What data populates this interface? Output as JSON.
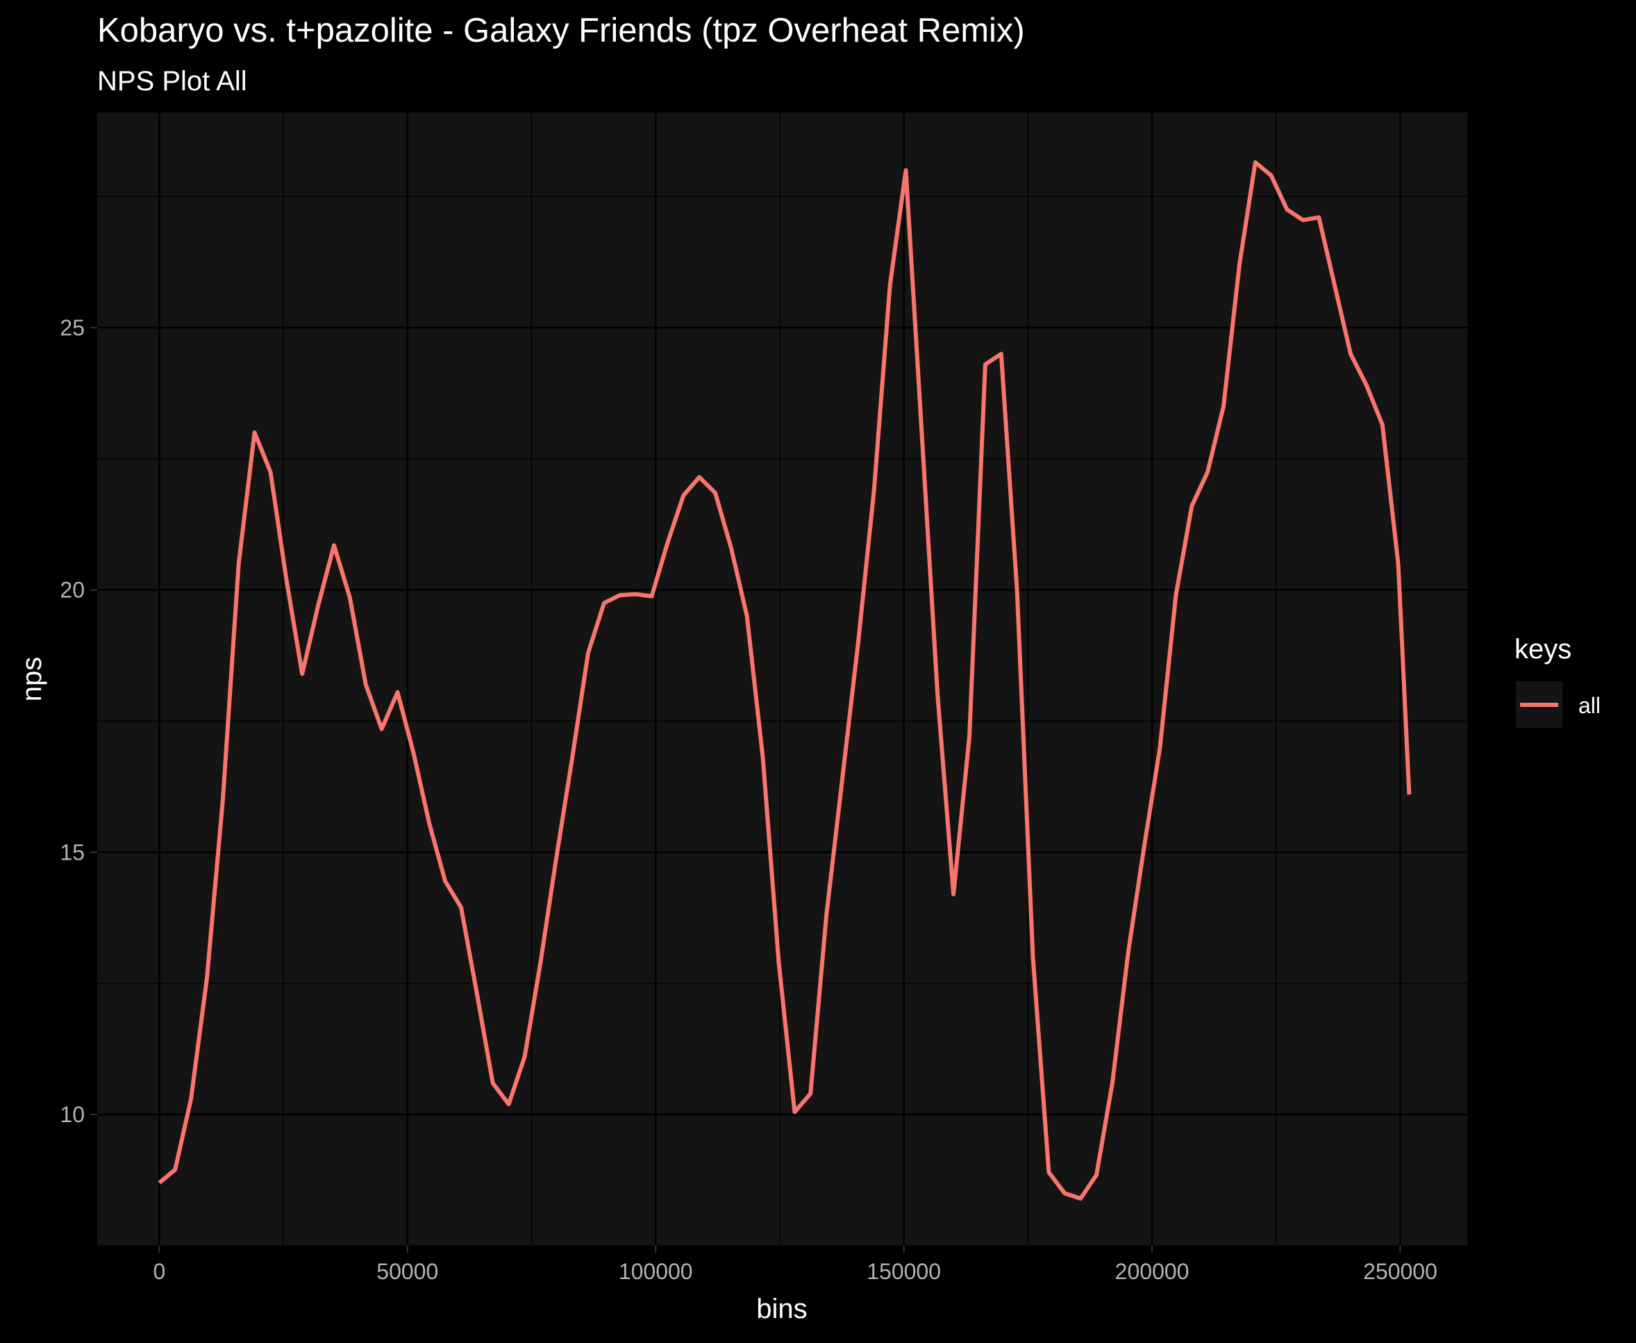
{
  "chart_data": {
    "type": "line",
    "title": "Kobaryo vs. t+pazolite - Galaxy Friends (tpz Overheat Remix)",
    "subtitle": "NPS Plot All",
    "xlabel": "bins",
    "ylabel": "nps",
    "xlim": [
      -12500,
      263500
    ],
    "ylim": [
      7.5,
      29.1
    ],
    "x_ticks": [
      0,
      50000,
      100000,
      150000,
      200000,
      250000
    ],
    "x_tick_labels": [
      "0",
      "50000",
      "100000",
      "150000",
      "200000",
      "250000"
    ],
    "y_ticks": [
      10,
      15,
      20,
      25
    ],
    "y_tick_labels": [
      "10",
      "15",
      "20",
      "25"
    ],
    "x_minor": [
      25000,
      75000,
      125000,
      175000,
      225000
    ],
    "y_minor": [
      7.5,
      12.5,
      17.5,
      22.5,
      27.5
    ],
    "grid": true,
    "legend": {
      "title": "keys",
      "position": "right",
      "entries": [
        {
          "label": "all",
          "color": "#F8766D"
        }
      ]
    },
    "colors": {
      "background": "#000000",
      "panel": "#141414",
      "grid": "#000000",
      "line": "#F8766D"
    },
    "series": [
      {
        "name": "all",
        "x": [
          0,
          3200,
          6400,
          9600,
          12800,
          16000,
          19200,
          22400,
          25600,
          28800,
          32000,
          35200,
          38400,
          41600,
          44800,
          48000,
          51200,
          54400,
          57600,
          60800,
          64000,
          67200,
          70400,
          73600,
          76800,
          80000,
          83200,
          86400,
          89600,
          92800,
          96000,
          99200,
          102400,
          105600,
          108800,
          112000,
          115200,
          118400,
          121600,
          124800,
          128000,
          131200,
          134400,
          137600,
          140800,
          144000,
          147200,
          150400,
          153600,
          156800,
          160000,
          163200,
          166400,
          169600,
          172800,
          176000,
          179200,
          182400,
          185600,
          188800,
          192000,
          195200,
          198400,
          201600,
          204800,
          208000,
          211200,
          214400,
          217600,
          220800,
          224000,
          227200,
          230400,
          233600,
          236800,
          240000,
          243200,
          246400,
          249600,
          251800
        ],
        "values": [
          8.7,
          8.95,
          10.3,
          12.6,
          16.0,
          20.5,
          23.0,
          22.25,
          20.2,
          18.4,
          19.7,
          20.85,
          19.85,
          18.2,
          17.35,
          18.05,
          16.9,
          15.55,
          14.45,
          13.95,
          12.3,
          10.6,
          10.2,
          11.1,
          12.9,
          14.9,
          16.8,
          18.8,
          19.75,
          19.9,
          19.92,
          19.88,
          20.9,
          21.8,
          22.15,
          21.85,
          20.8,
          19.5,
          16.8,
          12.9,
          10.05,
          10.4,
          13.8,
          16.4,
          19.0,
          21.9,
          25.8,
          28.0,
          23.0,
          18.0,
          14.2,
          17.2,
          24.3,
          24.5,
          20.0,
          13.0,
          8.9,
          8.5,
          8.4,
          8.85,
          10.6,
          13.1,
          15.1,
          17.0,
          19.9,
          21.6,
          22.25,
          23.5,
          26.2,
          28.15,
          27.9,
          27.25,
          27.05,
          27.1,
          25.8,
          24.5,
          23.9,
          23.15,
          20.5,
          16.1
        ]
      }
    ]
  }
}
